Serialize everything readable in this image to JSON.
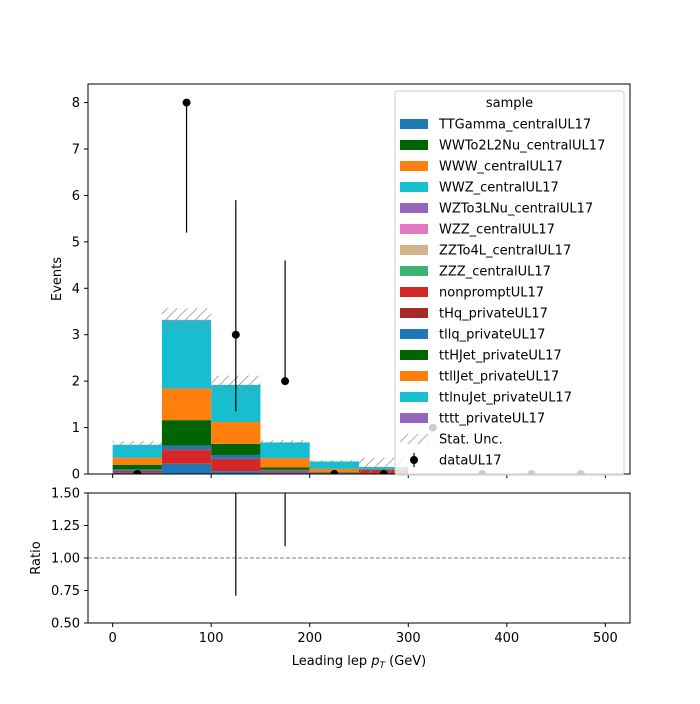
{
  "chart_data": [
    {
      "type": "bar",
      "stacked": true,
      "xlabel_main": "Leading lep ",
      "xlabel_sym": "p",
      "xlabel_sub": "T",
      "xlabel_unit": " (GeV)",
      "ylabel": "Events",
      "xlim": [
        -25,
        525
      ],
      "ylim": [
        0,
        8.4
      ],
      "x_ticks": [
        0,
        100,
        200,
        300,
        400,
        500
      ],
      "y_ticks": [
        0,
        1,
        2,
        3,
        4,
        5,
        6,
        7,
        8
      ],
      "bin_edges": [
        0,
        50,
        100,
        150,
        200,
        250,
        300,
        350,
        400,
        450,
        500
      ],
      "legend": {
        "title": "sample",
        "placement": "top-right"
      },
      "series": [
        {
          "name": "TTGamma_centralUL17",
          "color": "#1f77b4",
          "values": [
            0.03,
            0.22,
            0.06,
            0.03,
            0.0,
            0.0,
            0,
            0,
            0,
            0
          ]
        },
        {
          "name": "WWTo2L2Nu_centralUL17",
          "color": "#006400",
          "values": [
            0.0,
            0.0,
            0.0,
            0.0,
            0.0,
            0.0,
            0,
            0,
            0,
            0
          ]
        },
        {
          "name": "WWW_centralUL17",
          "color": "#ff7f0e",
          "values": [
            0.0,
            0.0,
            0.0,
            0.0,
            0.0,
            0.0,
            0,
            0,
            0,
            0
          ]
        },
        {
          "name": "WWZ_centralUL17",
          "color": "#17becf",
          "values": [
            0.0,
            0.0,
            0.0,
            0.0,
            0.0,
            0.0,
            0,
            0,
            0,
            0
          ]
        },
        {
          "name": "WZTo3LNu_centralUL17",
          "color": "#9467bd",
          "values": [
            0.0,
            0.0,
            0.0,
            0.0,
            0.0,
            0.0,
            0,
            0,
            0,
            0
          ]
        },
        {
          "name": "WZZ_centralUL17",
          "color": "#e377c2",
          "values": [
            0.0,
            0.0,
            0.0,
            0.0,
            0.0,
            0.0,
            0,
            0,
            0,
            0
          ]
        },
        {
          "name": "ZZTo4L_centralUL17",
          "color": "#d2b48c",
          "values": [
            0.0,
            0.0,
            0.0,
            0.0,
            0.0,
            0.0,
            0,
            0,
            0,
            0
          ]
        },
        {
          "name": "ZZZ_centralUL17",
          "color": "#3cb371",
          "values": [
            0.0,
            0.0,
            0.0,
            0.0,
            0.0,
            0.0,
            0,
            0,
            0,
            0
          ]
        },
        {
          "name": "nonpromptUL17",
          "color": "#d62728",
          "values": [
            0.04,
            0.29,
            0.25,
            0.03,
            0.02,
            0.09,
            0,
            0,
            0,
            0
          ]
        },
        {
          "name": "tHq_privateUL17",
          "color": "#a52a2a",
          "values": [
            0.0,
            0.02,
            0.02,
            0.01,
            0.0,
            0.0,
            0,
            0,
            0,
            0
          ]
        },
        {
          "name": "tllq_privateUL17",
          "color": "#1f77b4",
          "values": [
            0.03,
            0.08,
            0.08,
            0.02,
            0.01,
            0.0,
            0,
            0,
            0,
            0
          ]
        },
        {
          "name": "ttHJet_privateUL17",
          "color": "#006400",
          "values": [
            0.1,
            0.55,
            0.24,
            0.05,
            0.01,
            0.01,
            0,
            0,
            0,
            0
          ]
        },
        {
          "name": "ttllJet_privateUL17",
          "color": "#ff7f0e",
          "values": [
            0.15,
            0.68,
            0.47,
            0.2,
            0.07,
            0.0,
            0,
            0,
            0,
            0
          ]
        },
        {
          "name": "ttlnuJet_privateUL17",
          "color": "#17becf",
          "values": [
            0.28,
            1.47,
            0.8,
            0.34,
            0.16,
            0.05,
            0,
            0,
            0,
            0
          ]
        },
        {
          "name": "tttt_privateUL17",
          "color": "#9467bd",
          "values": [
            0.0,
            0.01,
            0.0,
            0.0,
            0.0,
            0.0,
            0,
            0,
            0,
            0
          ]
        }
      ],
      "stat_unc": {
        "name": "Stat. Unc.",
        "values": [
          0.08,
          0.25,
          0.2,
          0.05,
          0.03,
          0.2,
          0,
          0,
          0,
          0
        ]
      },
      "data": {
        "name": "dataUL17",
        "x": [
          25,
          75,
          125,
          175,
          225,
          275,
          325,
          375,
          425,
          475
        ],
        "y": [
          0,
          8,
          3,
          2,
          0,
          0,
          1,
          0,
          0,
          0
        ],
        "err_up": [
          0,
          0,
          2.9,
          2.6,
          0,
          0,
          0,
          0,
          0,
          0
        ],
        "err_dn": [
          0,
          2.8,
          1.65,
          0,
          0,
          0,
          0,
          0,
          0,
          0
        ]
      }
    },
    {
      "type": "scatter",
      "ylabel": "Ratio",
      "xlim": [
        -25,
        525
      ],
      "ylim": [
        0.5,
        1.5
      ],
      "x_ticks": [
        0,
        100,
        200,
        300,
        400,
        500
      ],
      "y_ticks": [
        "0.50",
        "0.75",
        "1.00",
        "1.25",
        "1.50"
      ],
      "reference_line": 1.0,
      "error_bars": [
        {
          "x": 125,
          "low": 0.71,
          "high": 1.5
        },
        {
          "x": 175,
          "low": 1.09,
          "high": 1.5
        }
      ]
    }
  ]
}
